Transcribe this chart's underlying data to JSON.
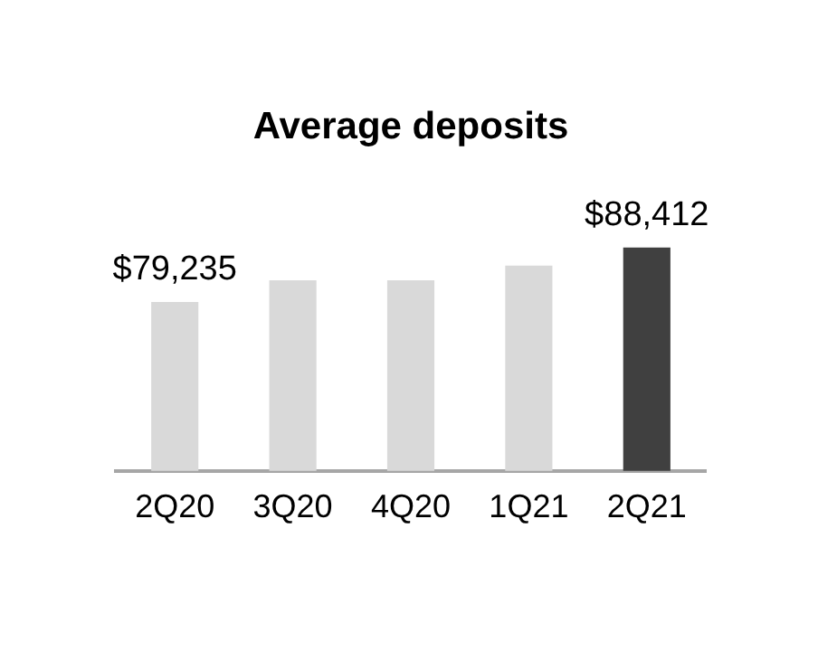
{
  "chart_data": {
    "type": "bar",
    "title": "Average deposits",
    "categories": [
      "2Q20",
      "3Q20",
      "4Q20",
      "1Q21",
      "2Q21"
    ],
    "values": [
      79235,
      82900,
      82900,
      85350,
      88412
    ],
    "colors": [
      "#d9d9d9",
      "#d9d9d9",
      "#d9d9d9",
      "#d9d9d9",
      "#404040"
    ],
    "value_labels": [
      "$79,235",
      null,
      null,
      null,
      "$88,412"
    ],
    "tick_labels": "x",
    "grid": false,
    "legend": false
  }
}
